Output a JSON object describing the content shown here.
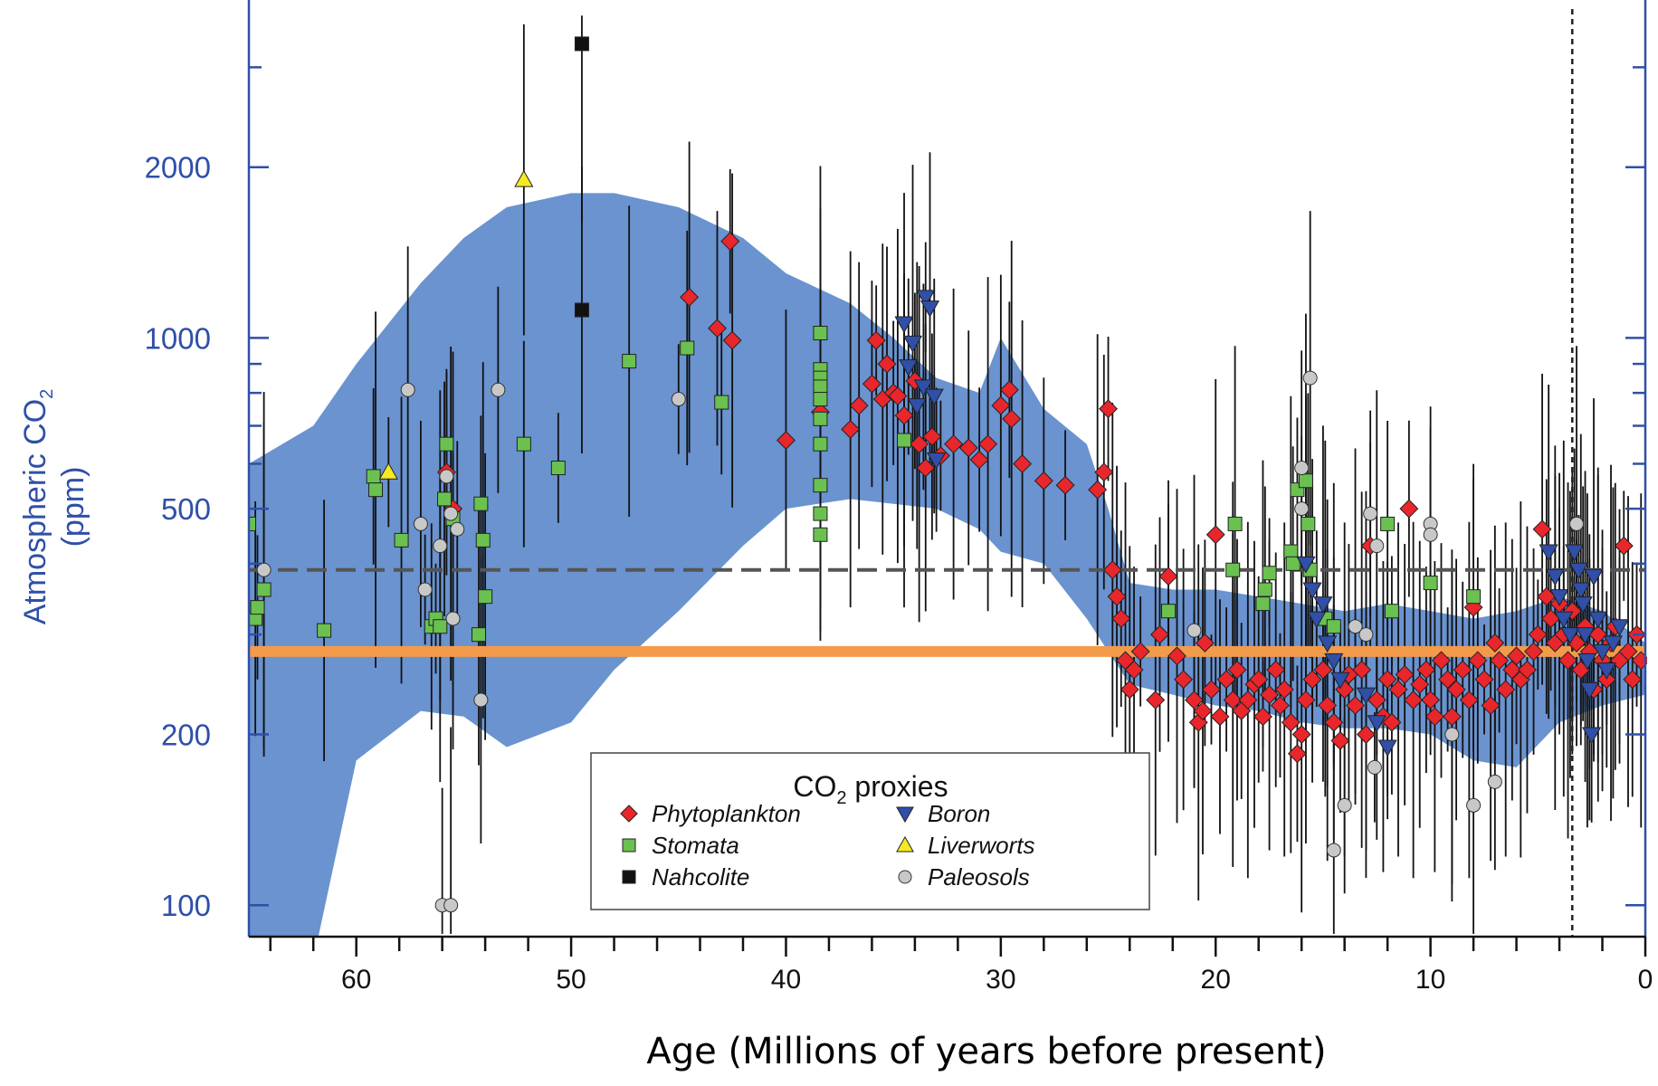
{
  "colors": {
    "band": "#6a93cf",
    "axis_blue": "#2f4fa8",
    "orange_line": "#f39b4a",
    "dashed_line": "#555555",
    "phytoplankton": "#e8262b",
    "stomata": "#6ac150",
    "nahcolite": "#111111",
    "boron": "#2f4fa8",
    "liverworts": "#f5e923",
    "paleosols": "#c8c8c8"
  },
  "chart_data": {
    "type": "scatter",
    "ylabel_main": "Atmospheric CO",
    "ylabel_sub": "2",
    "ylabel_unit": "(ppm)",
    "xlabel": "Age (Millions of years before present)",
    "x_direction": "reversed",
    "xlim": [
      65,
      0
    ],
    "ylim": [
      88,
      3800
    ],
    "yscale": "log",
    "x_ticks": [
      60,
      50,
      40,
      30,
      20,
      10,
      0
    ],
    "y_ticks": [
      100,
      200,
      500,
      1000,
      2000
    ],
    "reference_lines": [
      {
        "kind": "solid",
        "y": 280
      },
      {
        "kind": "dashed",
        "y": 390
      },
      {
        "kind": "vertical-dotted",
        "x": 3.4
      }
    ],
    "legend": {
      "title_main": "CO",
      "title_sub": "2",
      "title_rest": " proxies",
      "entries": [
        "Phytoplankton",
        "Stomata",
        "Nahcolite",
        "Boron",
        "Liverworts",
        "Paleosols"
      ]
    },
    "band": {
      "x": [
        65,
        62,
        60,
        57,
        55,
        53,
        50,
        48,
        45,
        42,
        40,
        37,
        35,
        33,
        31,
        30,
        28,
        26,
        25,
        24,
        22,
        20,
        18,
        16,
        14,
        12,
        10,
        8,
        6,
        4,
        2,
        0
      ],
      "upper": [
        600,
        700,
        900,
        1250,
        1500,
        1700,
        1800,
        1800,
        1700,
        1500,
        1300,
        1150,
        1000,
        850,
        800,
        1000,
        750,
        650,
        500,
        370,
        360,
        360,
        350,
        340,
        330,
        340,
        330,
        320,
        330,
        350,
        330,
        290
      ],
      "lower": [
        80,
        80,
        180,
        220,
        215,
        190,
        210,
        260,
        330,
        430,
        500,
        520,
        510,
        500,
        460,
        420,
        400,
        320,
        280,
        245,
        235,
        225,
        220,
        210,
        205,
        205,
        200,
        180,
        175,
        210,
        225,
        235
      ]
    },
    "series": [
      {
        "name": "Phytoplankton",
        "points": [
          [
            55.8,
            580
          ],
          [
            55.5,
            500
          ],
          [
            44.5,
            1180
          ],
          [
            43.2,
            1040
          ],
          [
            42.6,
            1480
          ],
          [
            42.5,
            990
          ],
          [
            40,
            660
          ],
          [
            38.4,
            740
          ],
          [
            37,
            690
          ],
          [
            36.6,
            760
          ],
          [
            36,
            830
          ],
          [
            35.8,
            990
          ],
          [
            35.5,
            780
          ],
          [
            35.3,
            900
          ],
          [
            35.0,
            800
          ],
          [
            34.8,
            790
          ],
          [
            34.5,
            730
          ],
          [
            34.0,
            840
          ],
          [
            33.8,
            650
          ],
          [
            33.5,
            590
          ],
          [
            33.2,
            670
          ],
          [
            32.8,
            620
          ],
          [
            32.2,
            650
          ],
          [
            31.5,
            640
          ],
          [
            31,
            610
          ],
          [
            30.6,
            650
          ],
          [
            30,
            760
          ],
          [
            29.6,
            810
          ],
          [
            29.5,
            720
          ],
          [
            29.0,
            600
          ],
          [
            28.0,
            560
          ],
          [
            27.0,
            550
          ],
          [
            25.5,
            540
          ],
          [
            25.2,
            580
          ],
          [
            25.0,
            750
          ],
          [
            24.8,
            390
          ],
          [
            24.6,
            350
          ],
          [
            24.4,
            320
          ],
          [
            24.2,
            270
          ],
          [
            24.0,
            240
          ],
          [
            23.8,
            260
          ],
          [
            23.5,
            280
          ],
          [
            22.8,
            230
          ],
          [
            22.6,
            300
          ],
          [
            22.2,
            380
          ],
          [
            21.8,
            275
          ],
          [
            21.5,
            250
          ],
          [
            21.0,
            230
          ],
          [
            20.8,
            210
          ],
          [
            20.6,
            220
          ],
          [
            20.5,
            290
          ],
          [
            20.2,
            240
          ],
          [
            20.0,
            450
          ],
          [
            19.8,
            215
          ],
          [
            19.5,
            250
          ],
          [
            19.2,
            230
          ],
          [
            19.0,
            260
          ],
          [
            18.8,
            220
          ],
          [
            18.5,
            230
          ],
          [
            18.2,
            245
          ],
          [
            18.0,
            250
          ],
          [
            17.8,
            215
          ],
          [
            17.5,
            235
          ],
          [
            17.2,
            260
          ],
          [
            17.0,
            225
          ],
          [
            16.8,
            240
          ],
          [
            16.5,
            210
          ],
          [
            16.2,
            185
          ],
          [
            16.0,
            200
          ],
          [
            15.8,
            230
          ],
          [
            15.5,
            250
          ],
          [
            15.0,
            260
          ],
          [
            14.8,
            225
          ],
          [
            14.5,
            210
          ],
          [
            14.2,
            195
          ],
          [
            14.0,
            240
          ],
          [
            13.8,
            255
          ],
          [
            13.5,
            225
          ],
          [
            13.2,
            260
          ],
          [
            13.0,
            200
          ],
          [
            12.8,
            430
          ],
          [
            12.5,
            230
          ],
          [
            12.2,
            215
          ],
          [
            12.0,
            250
          ],
          [
            11.8,
            210
          ],
          [
            11.5,
            240
          ],
          [
            11.2,
            255
          ],
          [
            11.0,
            500
          ],
          [
            10.8,
            230
          ],
          [
            10.5,
            245
          ],
          [
            10.2,
            260
          ],
          [
            10.0,
            230
          ],
          [
            9.8,
            215
          ],
          [
            9.5,
            270
          ],
          [
            9.2,
            250
          ],
          [
            9.0,
            215
          ],
          [
            8.8,
            240
          ],
          [
            8.5,
            260
          ],
          [
            8.2,
            230
          ],
          [
            8.0,
            335
          ],
          [
            7.8,
            270
          ],
          [
            7.5,
            250
          ],
          [
            7.2,
            225
          ],
          [
            7.0,
            290
          ],
          [
            6.8,
            270
          ],
          [
            6.5,
            240
          ],
          [
            6.2,
            260
          ],
          [
            6.0,
            275
          ],
          [
            5.8,
            250
          ],
          [
            5.5,
            260
          ],
          [
            5.2,
            280
          ],
          [
            5.0,
            300
          ],
          [
            4.8,
            460
          ],
          [
            4.6,
            350
          ],
          [
            4.4,
            320
          ],
          [
            4.2,
            290
          ],
          [
            4.0,
            340
          ],
          [
            3.8,
            300
          ],
          [
            3.6,
            270
          ],
          [
            3.4,
            330
          ],
          [
            3.2,
            290
          ],
          [
            3.0,
            260
          ],
          [
            2.8,
            310
          ],
          [
            2.6,
            280
          ],
          [
            2.4,
            240
          ],
          [
            2.2,
            300
          ],
          [
            2.0,
            270
          ],
          [
            1.8,
            250
          ],
          [
            1.6,
            290
          ],
          [
            1.4,
            310
          ],
          [
            1.2,
            270
          ],
          [
            1.0,
            430
          ],
          [
            0.8,
            280
          ],
          [
            0.6,
            250
          ],
          [
            0.4,
            300
          ],
          [
            0.2,
            270
          ]
        ]
      },
      {
        "name": "Stomata",
        "points": [
          [
            65,
            470
          ],
          [
            64.7,
            320
          ],
          [
            64.6,
            335
          ],
          [
            64.3,
            360
          ],
          [
            61.5,
            305
          ],
          [
            59.2,
            570
          ],
          [
            59.1,
            540
          ],
          [
            57.9,
            440
          ],
          [
            56.5,
            310
          ],
          [
            56.3,
            320
          ],
          [
            56.1,
            310
          ],
          [
            55.9,
            520
          ],
          [
            55.8,
            650
          ],
          [
            55.5,
            480
          ],
          [
            54.3,
            300
          ],
          [
            54.2,
            510
          ],
          [
            54.1,
            440
          ],
          [
            54.0,
            350
          ],
          [
            52.2,
            650
          ],
          [
            50.6,
            590
          ],
          [
            47.3,
            910
          ],
          [
            44.6,
            960
          ],
          [
            43,
            770
          ],
          [
            38.4,
            1020
          ],
          [
            38.4,
            880
          ],
          [
            38.4,
            850
          ],
          [
            38.4,
            820
          ],
          [
            38.4,
            780
          ],
          [
            38.4,
            720
          ],
          [
            38.4,
            650
          ],
          [
            38.4,
            550
          ],
          [
            38.4,
            490
          ],
          [
            38.4,
            450
          ],
          [
            34.5,
            660
          ],
          [
            22.2,
            330
          ],
          [
            19.2,
            390
          ],
          [
            19.1,
            470
          ],
          [
            17.8,
            340
          ],
          [
            17.7,
            360
          ],
          [
            17.5,
            385
          ],
          [
            16.5,
            420
          ],
          [
            16.4,
            400
          ],
          [
            16.2,
            540
          ],
          [
            15.8,
            560
          ],
          [
            15.7,
            470
          ],
          [
            15.6,
            390
          ],
          [
            14.9,
            320
          ],
          [
            14.5,
            310
          ],
          [
            12,
            470
          ],
          [
            11.8,
            330
          ],
          [
            10,
            370
          ],
          [
            8,
            350
          ]
        ]
      },
      {
        "name": "Nahcolite",
        "points": [
          [
            49.5,
            3300
          ],
          [
            49.5,
            1120
          ]
        ]
      },
      {
        "name": "Boron",
        "points": [
          [
            34.5,
            1060
          ],
          [
            34.3,
            890
          ],
          [
            34.1,
            980
          ],
          [
            33.9,
            760
          ],
          [
            33.6,
            820
          ],
          [
            33.5,
            1180
          ],
          [
            33.3,
            1130
          ],
          [
            33.1,
            790
          ],
          [
            33.0,
            610
          ],
          [
            15.8,
            400
          ],
          [
            15.5,
            360
          ],
          [
            15.3,
            320
          ],
          [
            15.0,
            340
          ],
          [
            14.8,
            290
          ],
          [
            14.5,
            270
          ],
          [
            14.2,
            250
          ],
          [
            13.0,
            235
          ],
          [
            12.5,
            210
          ],
          [
            12.0,
            190
          ],
          [
            4.5,
            420
          ],
          [
            4.2,
            380
          ],
          [
            4.0,
            350
          ],
          [
            3.8,
            320
          ],
          [
            3.5,
            300
          ],
          [
            3.3,
            420
          ],
          [
            3.1,
            390
          ],
          [
            3.0,
            360
          ],
          [
            2.9,
            340
          ],
          [
            2.8,
            300
          ],
          [
            2.7,
            270
          ],
          [
            2.6,
            240
          ],
          [
            2.5,
            200
          ],
          [
            2.4,
            380
          ],
          [
            2.2,
            320
          ],
          [
            2.0,
            280
          ],
          [
            1.8,
            260
          ],
          [
            1.5,
            290
          ],
          [
            1.2,
            310
          ]
        ]
      },
      {
        "name": "Liverworts",
        "points": [
          [
            58.5,
            580
          ],
          [
            52.2,
            1900
          ]
        ]
      },
      {
        "name": "Paleosols",
        "points": [
          [
            64.3,
            390
          ],
          [
            57.6,
            810
          ],
          [
            57.0,
            470
          ],
          [
            56.8,
            360
          ],
          [
            56.1,
            430
          ],
          [
            56.0,
            100
          ],
          [
            55.8,
            570
          ],
          [
            55.6,
            490
          ],
          [
            55.5,
            320
          ],
          [
            55.3,
            460
          ],
          [
            55.6,
            100
          ],
          [
            54.2,
            230
          ],
          [
            53.4,
            810
          ],
          [
            45,
            780
          ],
          [
            21.0,
            305
          ],
          [
            16.0,
            590
          ],
          [
            16.0,
            500
          ],
          [
            15.6,
            850
          ],
          [
            14.5,
            125
          ],
          [
            14.0,
            150
          ],
          [
            13.5,
            310
          ],
          [
            13.0,
            300
          ],
          [
            12.8,
            490
          ],
          [
            12.6,
            175
          ],
          [
            12.5,
            430
          ],
          [
            10.0,
            470
          ],
          [
            10.0,
            450
          ],
          [
            9.0,
            200
          ],
          [
            8.0,
            150
          ],
          [
            7.0,
            165
          ],
          [
            3.2,
            470
          ]
        ]
      }
    ]
  }
}
